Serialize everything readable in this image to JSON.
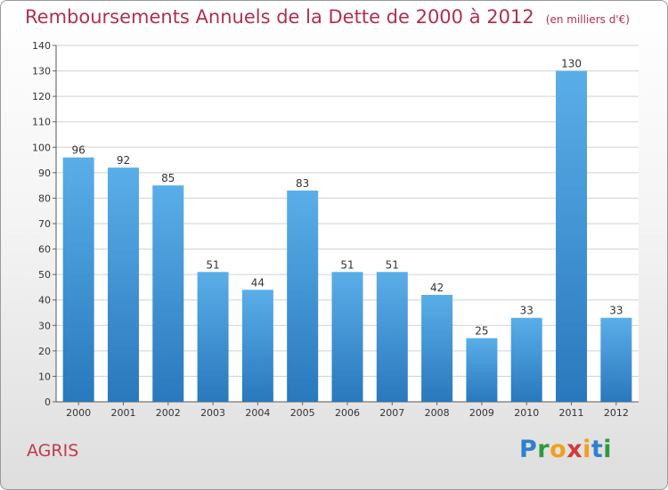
{
  "title": "Remboursements Annuels de la Dette de 2000 à 2012",
  "unit": "(en milliers d'€)",
  "location": "AGRIS",
  "brand": [
    "P",
    "r",
    "o",
    "x",
    "i",
    "t",
    "i"
  ],
  "colors": {
    "bar_light": "#5aaee8",
    "bar_dark": "#2a78bd",
    "grid": "#d0d0d0",
    "title": "#b03050"
  },
  "chart_data": {
    "type": "bar",
    "categories": [
      "2000",
      "2001",
      "2002",
      "2003",
      "2004",
      "2005",
      "2006",
      "2007",
      "2008",
      "2009",
      "2010",
      "2011",
      "2012"
    ],
    "values": [
      96,
      92,
      85,
      51,
      44,
      83,
      51,
      51,
      42,
      25,
      33,
      130,
      33
    ],
    "ylim": [
      0,
      140
    ],
    "yticks": [
      0,
      10,
      20,
      30,
      40,
      50,
      60,
      70,
      80,
      90,
      100,
      110,
      120,
      130,
      140
    ],
    "grid": true
  }
}
